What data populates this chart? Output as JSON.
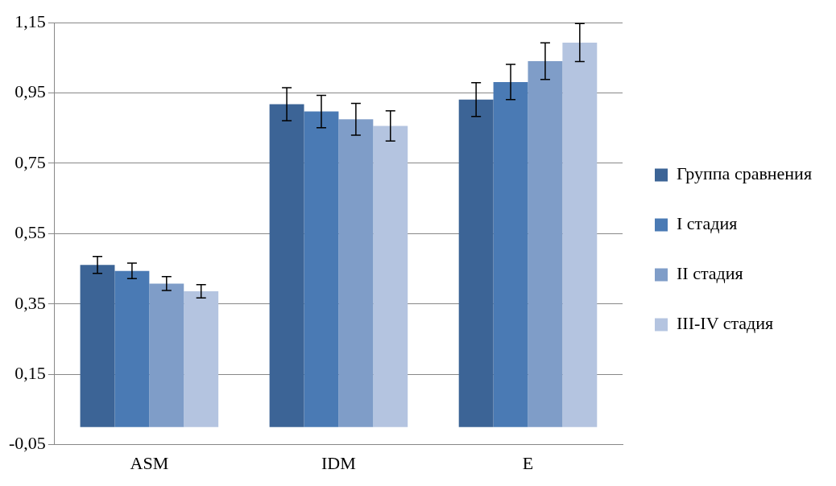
{
  "chart_data": {
    "type": "bar",
    "categories": [
      "ASM",
      "IDM",
      "E"
    ],
    "series": [
      {
        "name": "Группа сравнения",
        "color": "#3c6496",
        "values": [
          0.461,
          0.918,
          0.931
        ],
        "errors": [
          0.024,
          0.047,
          0.048
        ]
      },
      {
        "name": "I стадия",
        "color": "#4a7ab4",
        "values": [
          0.444,
          0.897,
          0.981
        ],
        "errors": [
          0.022,
          0.046,
          0.05
        ]
      },
      {
        "name": "II стадия",
        "color": "#7f9dc8",
        "values": [
          0.408,
          0.875,
          1.04
        ],
        "errors": [
          0.02,
          0.045,
          0.052
        ]
      },
      {
        "name": "III-IV стадия",
        "color": "#b4c4e0",
        "values": [
          0.386,
          0.856,
          1.093
        ],
        "errors": [
          0.019,
          0.043,
          0.054
        ]
      }
    ],
    "ylim": [
      -0.05,
      1.15
    ],
    "yticks": [
      {
        "value": -0.05,
        "label": "-0,05"
      },
      {
        "value": 0.15,
        "label": "0,15"
      },
      {
        "value": 0.35,
        "label": "0,35"
      },
      {
        "value": 0.55,
        "label": "0,55"
      },
      {
        "value": 0.75,
        "label": "0,75"
      },
      {
        "value": 0.95,
        "label": "0,95"
      },
      {
        "value": 1.15,
        "label": "1,15"
      }
    ],
    "grid": "y",
    "legend": "right"
  }
}
